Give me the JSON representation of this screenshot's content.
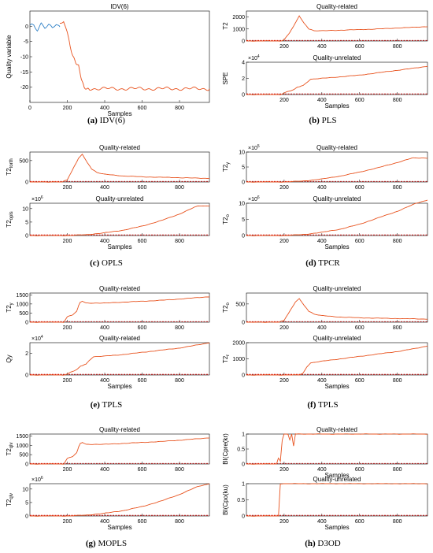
{
  "colors": {
    "series": "#e8531f",
    "series_blue": "#2f80c6",
    "threshold": "#d40000",
    "axis": "#000000"
  },
  "captions": [
    {
      "letter": "(a)",
      "text": "IDV(6)"
    },
    {
      "letter": "(b)",
      "text": "PLS"
    },
    {
      "letter": "(c)",
      "text": "OPLS"
    },
    {
      "letter": "(d)",
      "text": "TPCR"
    },
    {
      "letter": "(e)",
      "text": "TPLS"
    },
    {
      "letter": "(f)",
      "text": "TPLS"
    },
    {
      "letter": "(g)",
      "text": "MOPLS"
    },
    {
      "letter": "(h)",
      "text": "D3OD"
    }
  ],
  "chart_data": [
    {
      "panel": "a",
      "type": "line",
      "title": "IDV(6)",
      "xlabel": "Samples",
      "ylabel": "Quality variable",
      "xlim": [
        0,
        960
      ],
      "ylim": [
        -25,
        5
      ],
      "xticks": [
        0,
        200,
        400,
        600,
        800
      ],
      "yticks": [
        0,
        -5,
        -10,
        -15,
        -20
      ],
      "series": [
        {
          "color": "blue",
          "x": [
            1,
            20,
            40,
            60,
            80,
            100,
            120,
            140,
            160
          ],
          "y": [
            0,
            0.5,
            -1,
            1,
            -0.5,
            0.3,
            -0.8,
            0.6,
            -0.2
          ]
        },
        {
          "color": "orange",
          "x": [
            160,
            180,
            200,
            215,
            230,
            245,
            260,
            275,
            290,
            320,
            400,
            500,
            600,
            700,
            800,
            900,
            960
          ],
          "y": [
            1,
            2,
            -2,
            -7,
            -10,
            -12,
            -13,
            -17,
            -20,
            -20.5,
            -20.5,
            -20.5,
            -20.5,
            -20.5,
            -20.5,
            -20.5,
            -20.5
          ]
        }
      ]
    },
    {
      "panel": "b1",
      "type": "line",
      "title": "Quality-related",
      "ylabel": "T2",
      "exponent": "",
      "xlim": [
        0,
        960
      ],
      "ylim": [
        0,
        2500
      ],
      "xticks": [
        200,
        400,
        600,
        800
      ],
      "yticks": [
        0,
        1000,
        2000
      ],
      "ytick_labels": [
        "0",
        "1000",
        "2000"
      ],
      "x": [
        0,
        180,
        200,
        230,
        260,
        280,
        300,
        330,
        360,
        400,
        500,
        600,
        700,
        800,
        900,
        960
      ],
      "y": [
        0,
        0,
        100,
        700,
        1500,
        2100,
        1600,
        1000,
        850,
        850,
        900,
        950,
        1000,
        1080,
        1150,
        1200
      ]
    },
    {
      "panel": "b2",
      "type": "line",
      "title": "Quality-unrelated",
      "xlabel": "Samples",
      "ylabel": "SPE",
      "exponent": "×10",
      "xlim": [
        0,
        960
      ],
      "ylim": [
        0,
        4
      ],
      "xticks": [
        200,
        400,
        600,
        800
      ],
      "yticks": [
        0,
        2,
        4
      ],
      "ytick_labels": [
        "0",
        "2",
        "4"
      ],
      "x": [
        0,
        180,
        200,
        250,
        270,
        300,
        320,
        340,
        400,
        500,
        600,
        700,
        800,
        900,
        960
      ],
      "y": [
        0,
        0,
        0.2,
        0.6,
        0.9,
        1.1,
        1.5,
        1.9,
        2.0,
        2.2,
        2.4,
        2.7,
        3.0,
        3.3,
        3.5
      ]
    },
    {
      "panel": "c1",
      "type": "line",
      "title": "Quality-related",
      "ylabel": "T2 torth",
      "exponent": "",
      "xlim": [
        0,
        960
      ],
      "ylim": [
        0,
        700
      ],
      "xticks": [
        200,
        400,
        600,
        800
      ],
      "yticks": [
        0,
        500
      ],
      "ytick_labels": [
        "0",
        "500"
      ],
      "x": [
        0,
        170,
        200,
        230,
        260,
        280,
        300,
        330,
        360,
        400,
        500,
        600,
        700,
        800,
        900,
        960
      ],
      "y": [
        0,
        0,
        50,
        300,
        550,
        650,
        500,
        300,
        220,
        180,
        140,
        120,
        110,
        100,
        90,
        85
      ]
    },
    {
      "panel": "c2",
      "type": "line",
      "title": "Quality-unrelated",
      "xlabel": "Samples",
      "ylabel": "T2 opls",
      "exponent": "×10",
      "xlim": [
        0,
        960
      ],
      "ylim": [
        0,
        12
      ],
      "xticks": [
        200,
        400,
        600,
        800
      ],
      "yticks": [
        0,
        5,
        10
      ],
      "ytick_labels": [
        "0",
        "5",
        "10"
      ],
      "x": [
        0,
        200,
        300,
        400,
        500,
        600,
        700,
        800,
        880,
        900,
        960
      ],
      "y": [
        0,
        0,
        0.3,
        1,
        2,
        3.5,
        5.5,
        8,
        10.5,
        11,
        11
      ]
    },
    {
      "panel": "d1",
      "type": "line",
      "title": "Quality-related",
      "ylabel": "T2 y",
      "exponent": "×10",
      "xlim": [
        0,
        960
      ],
      "ylim": [
        0,
        10
      ],
      "xticks": [
        200,
        400,
        600,
        800
      ],
      "yticks": [
        0,
        5,
        10
      ],
      "ytick_labels": [
        "0",
        "5",
        "10"
      ],
      "x": [
        0,
        200,
        300,
        400,
        500,
        600,
        700,
        800,
        880,
        900,
        960
      ],
      "y": [
        0,
        0,
        0.3,
        1,
        2,
        3.3,
        4.8,
        6.5,
        8,
        8,
        8
      ]
    },
    {
      "panel": "d2",
      "type": "line",
      "title": "Quality-unrelated",
      "xlabel": "Samples",
      "ylabel": "T2 o",
      "exponent": "×10",
      "xlim": [
        0,
        960
      ],
      "ylim": [
        0,
        10
      ],
      "xticks": [
        200,
        400,
        600,
        800
      ],
      "yticks": [
        0,
        5,
        10
      ],
      "ytick_labels": [
        "0",
        "5",
        "10"
      ],
      "x": [
        0,
        200,
        300,
        400,
        500,
        600,
        700,
        800,
        900,
        960
      ],
      "y": [
        0,
        0,
        0.3,
        1,
        2,
        3.5,
        5.5,
        7.5,
        10,
        11
      ]
    },
    {
      "panel": "e1",
      "type": "line",
      "title": "Quality-related",
      "ylabel": "T2 y",
      "exponent": "",
      "xlim": [
        0,
        960
      ],
      "ylim": [
        0,
        1600
      ],
      "xticks": [
        200,
        400,
        600,
        800
      ],
      "yticks": [
        0,
        500,
        1000,
        1500
      ],
      "ytick_labels": [
        "0",
        "500",
        "1000",
        "1500"
      ],
      "x": [
        0,
        180,
        200,
        230,
        250,
        260,
        270,
        280,
        300,
        400,
        500,
        600,
        700,
        800,
        900,
        960
      ],
      "y": [
        0,
        0,
        300,
        400,
        600,
        900,
        1100,
        1150,
        1050,
        1050,
        1100,
        1150,
        1200,
        1270,
        1350,
        1400
      ]
    },
    {
      "panel": "e2",
      "type": "line",
      "title": "Quality-related",
      "xlabel": "Samples",
      "ylabel": "Qy",
      "exponent": "×10",
      "xlim": [
        0,
        960
      ],
      "ylim": [
        0,
        3
      ],
      "xticks": [
        200,
        400,
        600,
        800
      ],
      "yticks": [
        0,
        2
      ],
      "ytick_labels": [
        "0",
        "2"
      ],
      "x": [
        0,
        180,
        200,
        250,
        270,
        300,
        320,
        340,
        400,
        500,
        600,
        700,
        800,
        900,
        960
      ],
      "y": [
        0,
        0,
        0.1,
        0.5,
        0.8,
        1.0,
        1.4,
        1.7,
        1.75,
        1.9,
        2.1,
        2.3,
        2.5,
        2.8,
        3.0
      ]
    },
    {
      "panel": "f1",
      "type": "line",
      "title": "Quality-unrelated",
      "ylabel": "T2 o",
      "exponent": "",
      "xlim": [
        0,
        960
      ],
      "ylim": [
        0,
        800
      ],
      "xticks": [
        200,
        400,
        600,
        800
      ],
      "yticks": [
        0,
        500
      ],
      "ytick_labels": [
        "0",
        "500"
      ],
      "x": [
        0,
        170,
        200,
        230,
        260,
        280,
        300,
        330,
        360,
        400,
        500,
        600,
        700,
        800,
        900,
        960
      ],
      "y": [
        0,
        0,
        50,
        300,
        550,
        650,
        500,
        300,
        220,
        180,
        140,
        120,
        110,
        100,
        90,
        85
      ]
    },
    {
      "panel": "f2",
      "type": "line",
      "title": "Quality-unrelated",
      "xlabel": "Samples",
      "ylabel": "T2 r",
      "exponent": "",
      "xlim": [
        0,
        960
      ],
      "ylim": [
        0,
        2000
      ],
      "xticks": [
        200,
        400,
        600,
        800
      ],
      "yticks": [
        0,
        1000,
        2000
      ],
      "ytick_labels": [
        "0",
        "1000",
        "2000"
      ],
      "x": [
        0,
        280,
        300,
        320,
        340,
        400,
        500,
        600,
        700,
        800,
        900,
        960
      ],
      "y": [
        0,
        0,
        100,
        500,
        750,
        850,
        1000,
        1150,
        1300,
        1450,
        1650,
        1800
      ]
    },
    {
      "panel": "g1",
      "type": "line",
      "title": "Quality-related",
      "ylabel": "T2 qlv",
      "exponent": "",
      "xlim": [
        0,
        960
      ],
      "ylim": [
        0,
        1600
      ],
      "xticks": [
        200,
        400,
        600,
        800
      ],
      "yticks": [
        0,
        500,
        1000,
        1500
      ],
      "ytick_labels": [
        "0",
        "500",
        "1000",
        "1500"
      ],
      "x": [
        0,
        180,
        200,
        230,
        250,
        260,
        270,
        280,
        300,
        400,
        500,
        600,
        700,
        800,
        900,
        960
      ],
      "y": [
        0,
        0,
        300,
        400,
        600,
        900,
        1100,
        1150,
        1050,
        1050,
        1100,
        1150,
        1200,
        1270,
        1350,
        1400
      ]
    },
    {
      "panel": "g2",
      "type": "line",
      "title": "",
      "xlabel": "Samples",
      "ylabel": "T2 qlv",
      "exponent": "×10",
      "xlim": [
        0,
        960
      ],
      "ylim": [
        0,
        12
      ],
      "xticks": [
        200,
        400,
        600,
        800
      ],
      "yticks": [
        0,
        5,
        10
      ],
      "ytick_labels": [
        "0",
        "5",
        "10"
      ],
      "x": [
        0,
        200,
        300,
        400,
        500,
        600,
        700,
        800,
        900,
        960
      ],
      "y": [
        0,
        0,
        0.3,
        1,
        2,
        3.5,
        5.5,
        8,
        11,
        12
      ]
    },
    {
      "panel": "h1",
      "type": "line",
      "title": "Quality-related",
      "xlabel": "Samples",
      "ylabel": "BI(Cpre(kr)",
      "xlim": [
        0,
        960
      ],
      "ylim": [
        0,
        1
      ],
      "xticks": [
        200,
        400,
        600,
        800
      ],
      "yticks": [
        0,
        0.5,
        1
      ],
      "ytick_labels": [
        "0",
        "0.5",
        "1"
      ],
      "x": [
        0,
        160,
        170,
        180,
        190,
        200,
        210,
        220,
        230,
        240,
        250,
        260,
        270,
        960
      ],
      "y": [
        0,
        0,
        0.2,
        0.1,
        0.8,
        1,
        1,
        1,
        0.8,
        1,
        0.6,
        1,
        1,
        1
      ]
    },
    {
      "panel": "h2",
      "type": "line",
      "title": "Quality-unrelated",
      "xlabel": "Samples",
      "ylabel": "BI(Cpo(ku)",
      "xlim": [
        0,
        960
      ],
      "ylim": [
        0,
        1
      ],
      "xticks": [
        200,
        400,
        600,
        800
      ],
      "yticks": [
        0,
        0.5,
        1
      ],
      "ytick_labels": [
        "0",
        "0.5",
        "1"
      ],
      "x": [
        0,
        160,
        170,
        180,
        960
      ],
      "y": [
        0,
        0,
        0,
        1,
        1
      ]
    }
  ]
}
